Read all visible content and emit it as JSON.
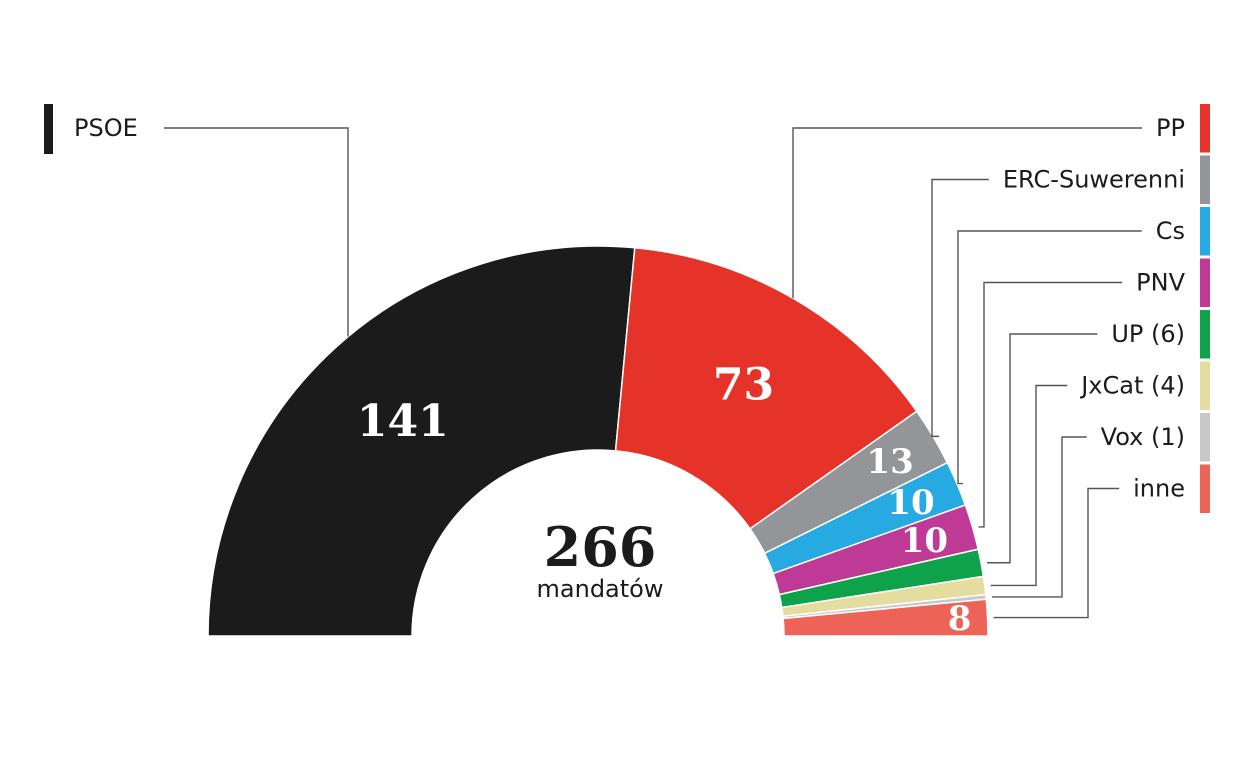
{
  "chart_data": {
    "type": "pie",
    "subtype": "semicircle parliament",
    "total": 266,
    "total_caption": "mandatów",
    "segments": [
      {
        "label": "PSOE",
        "value": 141,
        "value_label": "141",
        "color": "#1b1b1b"
      },
      {
        "label": "PP",
        "value": 73,
        "value_label": "73",
        "color": "#e63329"
      },
      {
        "label": "ERC-Suwerenni",
        "value": 13,
        "value_label": "13",
        "color": "#939598"
      },
      {
        "label": "Cs",
        "value": 10,
        "value_label": "10",
        "color": "#27aae1"
      },
      {
        "label": "PNV",
        "value": 10,
        "value_label": "10",
        "color": "#be3a96"
      },
      {
        "label": "UP (6)",
        "value": 6,
        "value_label": "",
        "color": "#0ea24a"
      },
      {
        "label": "JxCat (4)",
        "value": 4,
        "value_label": "",
        "color": "#e5dca0"
      },
      {
        "label": "Vox (1)",
        "value": 1,
        "value_label": "",
        "color": "#c8c8c8"
      },
      {
        "label": "inne",
        "value": 8,
        "value_label": "8",
        "color": "#ed6357"
      }
    ]
  }
}
